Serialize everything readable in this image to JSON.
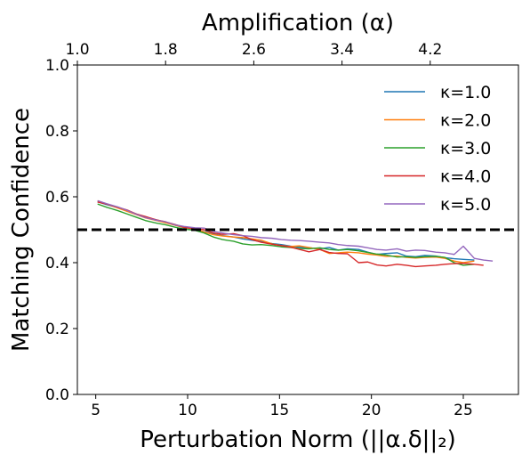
{
  "chart_data": {
    "type": "line",
    "xlabel": "Perturbation Norm (||α.δ||₂)",
    "ylabel": "Matching Confidence",
    "top_xlabel": "Amplification (α)",
    "xlim": [
      4,
      28
    ],
    "ylim": [
      0.0,
      1.0
    ],
    "xticks": [
      5,
      10,
      15,
      20,
      25
    ],
    "xtick_labels": [
      "5",
      "10",
      "15",
      "20",
      "25"
    ],
    "yticks": [
      0.0,
      0.2,
      0.4,
      0.6,
      0.8,
      1.0
    ],
    "ytick_labels": [
      "0.0",
      "0.2",
      "0.4",
      "0.6",
      "0.8",
      "1.0"
    ],
    "top_xlim": [
      1.0,
      5.0
    ],
    "top_xticks": [
      1.0,
      1.8,
      2.6,
      3.4,
      4.2
    ],
    "top_xtick_labels": [
      "1.0",
      "1.8",
      "2.6",
      "3.4",
      "4.2"
    ],
    "threshold": {
      "y": 0.5,
      "style": "dashed",
      "color": "#000000"
    },
    "grid": false,
    "legend_position": "top-right",
    "series": [
      {
        "name": "κ=1.0",
        "color": "#1f77b4",
        "x": [
          5.1,
          5.6,
          6.2,
          6.7,
          7.2,
          7.7,
          8.3,
          8.8,
          9.3,
          9.8,
          10.4,
          10.9,
          11.4,
          11.9,
          12.5,
          13.0,
          13.5,
          14.0,
          14.6,
          15.1,
          15.6,
          16.1,
          16.6,
          17.2,
          17.7,
          18.2,
          18.7,
          19.3,
          19.8,
          20.3,
          20.8,
          21.4,
          21.9,
          22.4,
          22.9,
          23.5,
          24.0,
          24.5,
          25.0,
          25.6
        ],
        "y": [
          0.585,
          0.576,
          0.567,
          0.558,
          0.548,
          0.538,
          0.53,
          0.522,
          0.514,
          0.506,
          0.5,
          0.494,
          0.487,
          0.482,
          0.478,
          0.472,
          0.468,
          0.464,
          0.458,
          0.455,
          0.45,
          0.447,
          0.445,
          0.442,
          0.446,
          0.438,
          0.442,
          0.44,
          0.432,
          0.425,
          0.428,
          0.43,
          0.42,
          0.418,
          0.422,
          0.42,
          0.415,
          0.412,
          0.41,
          0.408
        ]
      },
      {
        "name": "κ=2.0",
        "color": "#ff7f0e",
        "x": [
          5.1,
          5.6,
          6.2,
          6.7,
          7.2,
          7.7,
          8.3,
          8.8,
          9.3,
          9.8,
          10.4,
          10.9,
          11.4,
          11.9,
          12.5,
          13.0,
          13.5,
          14.0,
          14.6,
          15.1,
          15.6,
          16.1,
          16.6,
          17.2,
          17.7,
          18.2,
          18.7,
          19.3,
          19.8,
          20.3,
          20.8,
          21.4,
          21.9,
          22.4,
          22.9,
          23.5,
          24.0,
          24.5,
          25.0,
          25.6
        ],
        "y": [
          0.588,
          0.578,
          0.566,
          0.556,
          0.546,
          0.536,
          0.528,
          0.521,
          0.514,
          0.507,
          0.502,
          0.493,
          0.485,
          0.481,
          0.478,
          0.476,
          0.472,
          0.468,
          0.457,
          0.452,
          0.449,
          0.451,
          0.446,
          0.44,
          0.428,
          0.43,
          0.432,
          0.43,
          0.426,
          0.423,
          0.419,
          0.42,
          0.416,
          0.414,
          0.416,
          0.417,
          0.413,
          0.405,
          0.4,
          0.405
        ]
      },
      {
        "name": "κ=3.0",
        "color": "#2ca02c",
        "x": [
          5.1,
          5.6,
          6.2,
          6.7,
          7.2,
          7.7,
          8.3,
          8.8,
          9.3,
          9.8,
          10.4,
          10.9,
          11.4,
          11.9,
          12.5,
          13.0,
          13.5,
          14.0,
          14.6,
          15.1,
          15.6,
          16.1,
          16.6,
          17.2,
          17.7,
          18.2,
          18.7,
          19.3,
          19.8,
          20.3,
          20.8,
          21.4,
          21.9,
          22.4,
          22.9,
          23.5,
          24.0,
          24.5,
          25.0,
          25.6
        ],
        "y": [
          0.578,
          0.568,
          0.558,
          0.548,
          0.538,
          0.528,
          0.52,
          0.515,
          0.508,
          0.502,
          0.498,
          0.49,
          0.478,
          0.47,
          0.465,
          0.457,
          0.454,
          0.455,
          0.452,
          0.448,
          0.446,
          0.443,
          0.442,
          0.445,
          0.44,
          0.438,
          0.44,
          0.436,
          0.431,
          0.426,
          0.423,
          0.417,
          0.418,
          0.416,
          0.418,
          0.419,
          0.416,
          0.4,
          0.392,
          0.395
        ]
      },
      {
        "name": "κ=4.0",
        "color": "#d62728",
        "x": [
          5.1,
          5.6,
          6.2,
          6.7,
          7.2,
          7.7,
          8.3,
          8.8,
          9.3,
          9.8,
          10.4,
          10.9,
          11.4,
          11.9,
          12.5,
          13.0,
          13.5,
          14.0,
          14.6,
          15.1,
          15.6,
          16.1,
          16.6,
          17.2,
          17.7,
          18.2,
          18.7,
          19.3,
          19.8,
          20.3,
          20.8,
          21.4,
          21.9,
          22.4,
          22.9,
          23.5,
          24.0,
          24.5,
          25.0,
          25.6,
          26.1
        ],
        "y": [
          0.584,
          0.578,
          0.568,
          0.56,
          0.548,
          0.54,
          0.53,
          0.524,
          0.516,
          0.508,
          0.503,
          0.5,
          0.49,
          0.486,
          0.488,
          0.482,
          0.47,
          0.462,
          0.456,
          0.452,
          0.447,
          0.44,
          0.433,
          0.44,
          0.431,
          0.428,
          0.427,
          0.4,
          0.402,
          0.393,
          0.39,
          0.395,
          0.392,
          0.388,
          0.39,
          0.392,
          0.395,
          0.397,
          0.398,
          0.395,
          0.392
        ]
      },
      {
        "name": "κ=5.0",
        "color": "#9467bd",
        "x": [
          5.1,
          5.6,
          6.2,
          6.7,
          7.2,
          7.7,
          8.3,
          8.8,
          9.3,
          9.8,
          10.4,
          10.9,
          11.4,
          11.9,
          12.5,
          13.0,
          13.5,
          14.0,
          14.6,
          15.1,
          15.6,
          16.1,
          16.6,
          17.2,
          17.7,
          18.2,
          18.7,
          19.3,
          19.8,
          20.3,
          20.8,
          21.4,
          21.9,
          22.4,
          22.9,
          23.5,
          24.0,
          24.5,
          25.0,
          25.6,
          26.1,
          26.6
        ],
        "y": [
          0.588,
          0.579,
          0.569,
          0.559,
          0.547,
          0.537,
          0.529,
          0.524,
          0.515,
          0.51,
          0.506,
          0.505,
          0.495,
          0.49,
          0.485,
          0.482,
          0.48,
          0.476,
          0.474,
          0.47,
          0.468,
          0.467,
          0.465,
          0.462,
          0.46,
          0.455,
          0.452,
          0.45,
          0.445,
          0.44,
          0.438,
          0.442,
          0.435,
          0.438,
          0.437,
          0.432,
          0.43,
          0.425,
          0.45,
          0.413,
          0.408,
          0.405
        ]
      }
    ]
  }
}
